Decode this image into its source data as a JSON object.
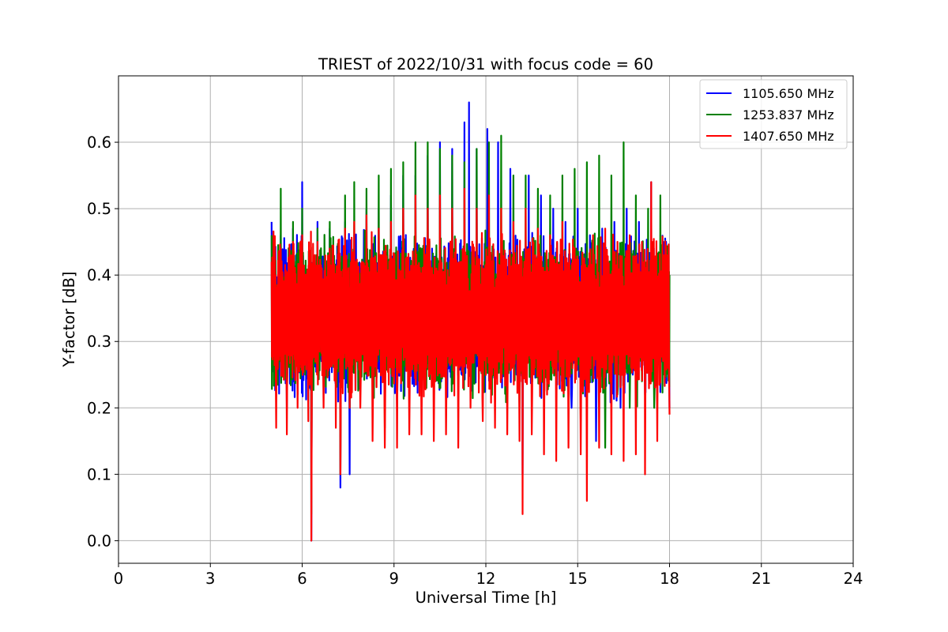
{
  "chart_data": {
    "type": "line",
    "title": "TRIEST of 2022/10/31 with focus code = 60",
    "xlabel": "Universal Time [h]",
    "ylabel": "Y-factor [dB]",
    "xlim": [
      0,
      24
    ],
    "ylim": [
      -0.034,
      0.7
    ],
    "xticks": [
      0,
      3,
      6,
      9,
      12,
      15,
      18,
      21,
      24
    ],
    "yticks": [
      0.0,
      0.1,
      0.2,
      0.3,
      0.4,
      0.5,
      0.6
    ],
    "ytick_labels": [
      "0.0",
      "0.1",
      "0.2",
      "0.3",
      "0.4",
      "0.5",
      "0.6"
    ],
    "grid": true,
    "legend_position": "top-right",
    "series": [
      {
        "name": "1105.650 MHz",
        "color": "#0000ff",
        "x": [
          5.0,
          5.15,
          5.3,
          5.5,
          5.7,
          5.85,
          6.0,
          6.2,
          6.3,
          6.5,
          6.7,
          6.9,
          7.1,
          7.25,
          7.4,
          7.55,
          7.7,
          7.9,
          8.1,
          8.3,
          8.5,
          8.7,
          8.9,
          9.1,
          9.3,
          9.5,
          9.7,
          9.9,
          10.1,
          10.3,
          10.5,
          10.7,
          10.9,
          11.1,
          11.3,
          11.45,
          11.55,
          11.7,
          11.9,
          12.05,
          12.2,
          12.4,
          12.6,
          12.8,
          13.0,
          13.2,
          13.4,
          13.6,
          13.8,
          14.0,
          14.2,
          14.4,
          14.6,
          14.8,
          15.0,
          15.2,
          15.4,
          15.6,
          15.8,
          16.0,
          16.2,
          16.4,
          16.6,
          16.8,
          17.0,
          17.2,
          17.4,
          17.6,
          17.8,
          18.0
        ],
        "y": [
          0.48,
          0.25,
          0.46,
          0.2,
          0.47,
          0.22,
          0.54,
          0.28,
          0.0,
          0.48,
          0.23,
          0.47,
          0.25,
          0.08,
          0.48,
          0.1,
          0.46,
          0.26,
          0.5,
          0.24,
          0.5,
          0.26,
          0.52,
          0.2,
          0.55,
          0.25,
          0.55,
          0.3,
          0.58,
          0.32,
          0.6,
          0.28,
          0.59,
          0.33,
          0.63,
          0.66,
          0.3,
          0.59,
          0.35,
          0.62,
          0.3,
          0.6,
          0.27,
          0.56,
          0.25,
          0.1,
          0.55,
          0.28,
          0.52,
          0.24,
          0.5,
          0.28,
          0.48,
          0.2,
          0.5,
          0.24,
          0.46,
          0.15,
          0.47,
          0.26,
          0.48,
          0.2,
          0.5,
          0.25,
          0.48,
          0.22,
          0.54,
          0.28,
          0.45,
          0.2
        ]
      },
      {
        "name": "1253.837 MHz",
        "color": "#008000",
        "x": [
          5.0,
          5.15,
          5.3,
          5.5,
          5.7,
          5.85,
          6.0,
          6.2,
          6.3,
          6.5,
          6.7,
          6.9,
          7.1,
          7.25,
          7.4,
          7.55,
          7.7,
          7.9,
          8.1,
          8.3,
          8.5,
          8.7,
          8.9,
          9.1,
          9.3,
          9.5,
          9.7,
          9.9,
          10.1,
          10.3,
          10.5,
          10.7,
          10.9,
          11.1,
          11.3,
          11.5,
          11.7,
          11.9,
          12.1,
          12.3,
          12.5,
          12.7,
          12.9,
          13.1,
          13.3,
          13.5,
          13.7,
          13.9,
          14.1,
          14.3,
          14.5,
          14.7,
          14.9,
          15.1,
          15.3,
          15.5,
          15.7,
          15.9,
          16.1,
          16.3,
          16.5,
          16.7,
          16.9,
          17.1,
          17.3,
          17.5,
          17.7,
          17.9,
          18.0
        ],
        "y": [
          0.46,
          0.24,
          0.53,
          0.22,
          0.48,
          0.25,
          0.5,
          0.27,
          0.04,
          0.47,
          0.24,
          0.48,
          0.26,
          0.1,
          0.52,
          0.2,
          0.54,
          0.25,
          0.53,
          0.23,
          0.55,
          0.17,
          0.56,
          0.24,
          0.57,
          0.26,
          0.6,
          0.28,
          0.6,
          0.3,
          0.59,
          0.26,
          0.58,
          0.3,
          0.57,
          0.25,
          0.59,
          0.3,
          0.6,
          0.26,
          0.61,
          0.25,
          0.55,
          0.2,
          0.55,
          0.26,
          0.53,
          0.22,
          0.52,
          0.25,
          0.55,
          0.22,
          0.56,
          0.18,
          0.57,
          0.24,
          0.58,
          0.14,
          0.55,
          0.22,
          0.6,
          0.2,
          0.52,
          0.24,
          0.5,
          0.2,
          0.52,
          0.26,
          0.4
        ]
      },
      {
        "name": "1407.650 MHz",
        "color": "#ff0000",
        "x": [
          5.0,
          5.15,
          5.3,
          5.5,
          5.7,
          5.85,
          6.0,
          6.2,
          6.25,
          6.3,
          6.5,
          6.7,
          6.9,
          7.1,
          7.25,
          7.4,
          7.55,
          7.7,
          7.9,
          8.1,
          8.3,
          8.5,
          8.7,
          8.9,
          9.1,
          9.3,
          9.5,
          9.7,
          9.9,
          10.1,
          10.3,
          10.5,
          10.7,
          10.9,
          11.1,
          11.3,
          11.5,
          11.7,
          11.9,
          12.1,
          12.3,
          12.5,
          12.7,
          12.9,
          13.1,
          13.2,
          13.3,
          13.5,
          13.7,
          13.9,
          14.1,
          14.3,
          14.5,
          14.7,
          14.9,
          15.1,
          15.3,
          15.5,
          15.7,
          15.9,
          16.1,
          16.3,
          16.5,
          16.7,
          16.9,
          17.1,
          17.2,
          17.4,
          17.6,
          17.8,
          18.0
        ],
        "y": [
          0.42,
          0.17,
          0.44,
          0.16,
          0.45,
          0.2,
          0.46,
          0.18,
          0.4,
          0.0,
          0.45,
          0.2,
          0.44,
          0.17,
          0.1,
          0.47,
          0.2,
          0.48,
          0.2,
          0.49,
          0.15,
          0.47,
          0.14,
          0.48,
          0.14,
          0.5,
          0.16,
          0.52,
          0.16,
          0.5,
          0.15,
          0.52,
          0.16,
          0.5,
          0.14,
          0.53,
          0.2,
          0.5,
          0.18,
          0.52,
          0.17,
          0.5,
          0.16,
          0.48,
          0.15,
          0.04,
          0.5,
          0.16,
          0.47,
          0.13,
          0.46,
          0.12,
          0.48,
          0.14,
          0.44,
          0.13,
          0.06,
          0.46,
          0.14,
          0.47,
          0.13,
          0.45,
          0.12,
          0.46,
          0.13,
          0.45,
          0.1,
          0.54,
          0.15,
          0.43,
          0.19
        ]
      }
    ]
  }
}
